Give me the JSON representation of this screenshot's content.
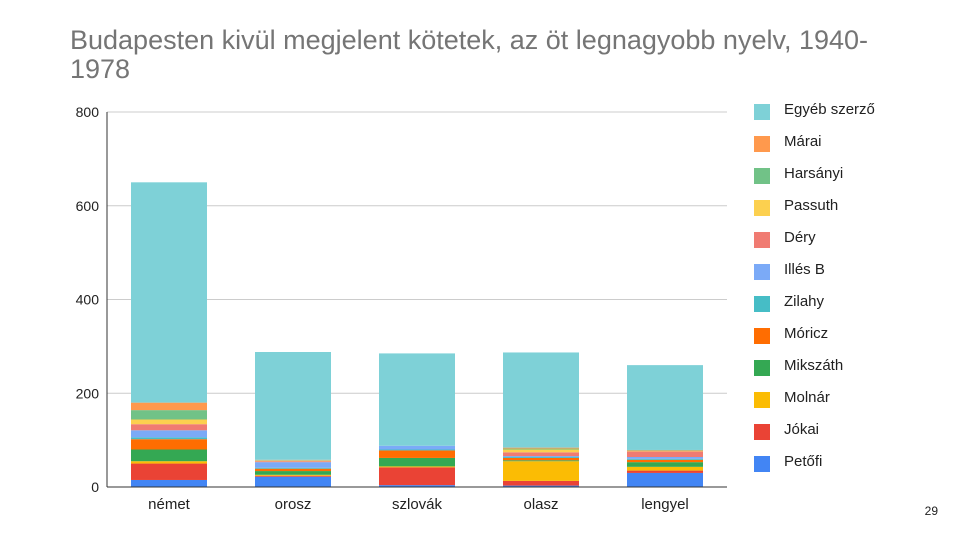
{
  "slide": {
    "page_number": "29"
  },
  "chart_data": {
    "type": "bar",
    "stacked": true,
    "title": "Budapesten kivül megjelent kötetek, az öt legnagyobb nyelv, 1940-1978",
    "xlabel": "",
    "ylabel": "",
    "ylim": [
      0,
      800
    ],
    "yticks": [
      0,
      200,
      400,
      600,
      800
    ],
    "grid": true,
    "legend_position": "right",
    "categories": [
      "német",
      "orosz",
      "szlovák",
      "olasz",
      "lengyel"
    ],
    "series": [
      {
        "name": "Petőfi",
        "color": "#4285f4",
        "values": [
          15,
          22,
          4,
          3,
          30
        ]
      },
      {
        "name": "Jókai",
        "color": "#ea4335",
        "values": [
          35,
          2,
          38,
          10,
          5
        ]
      },
      {
        "name": "Molnár",
        "color": "#fbbc04",
        "values": [
          5,
          2,
          2,
          42,
          8
        ]
      },
      {
        "name": "Mikszáth",
        "color": "#34a853",
        "values": [
          25,
          8,
          18,
          2,
          10
        ]
      },
      {
        "name": "Móricz",
        "color": "#ff6d01",
        "values": [
          22,
          5,
          16,
          5,
          5
        ]
      },
      {
        "name": "Zilahy",
        "color": "#46bdc6",
        "values": [
          4,
          2,
          2,
          2,
          2
        ]
      },
      {
        "name": "Illés B",
        "color": "#7baaf7",
        "values": [
          15,
          12,
          8,
          2,
          4
        ]
      },
      {
        "name": "Déry",
        "color": "#f07b72",
        "values": [
          13,
          2,
          0,
          8,
          12
        ]
      },
      {
        "name": "Passuth",
        "color": "#fcd04f",
        "values": [
          10,
          1,
          0,
          6,
          1
        ]
      },
      {
        "name": "Harsányi",
        "color": "#71c287",
        "values": [
          20,
          1,
          0,
          2,
          1
        ]
      },
      {
        "name": "Márai",
        "color": "#ff994d",
        "values": [
          16,
          1,
          0,
          2,
          1
        ]
      },
      {
        "name": "Egyéb szerző",
        "color": "#7ed1d7",
        "values": [
          470,
          230,
          197,
          203,
          181
        ]
      }
    ]
  }
}
